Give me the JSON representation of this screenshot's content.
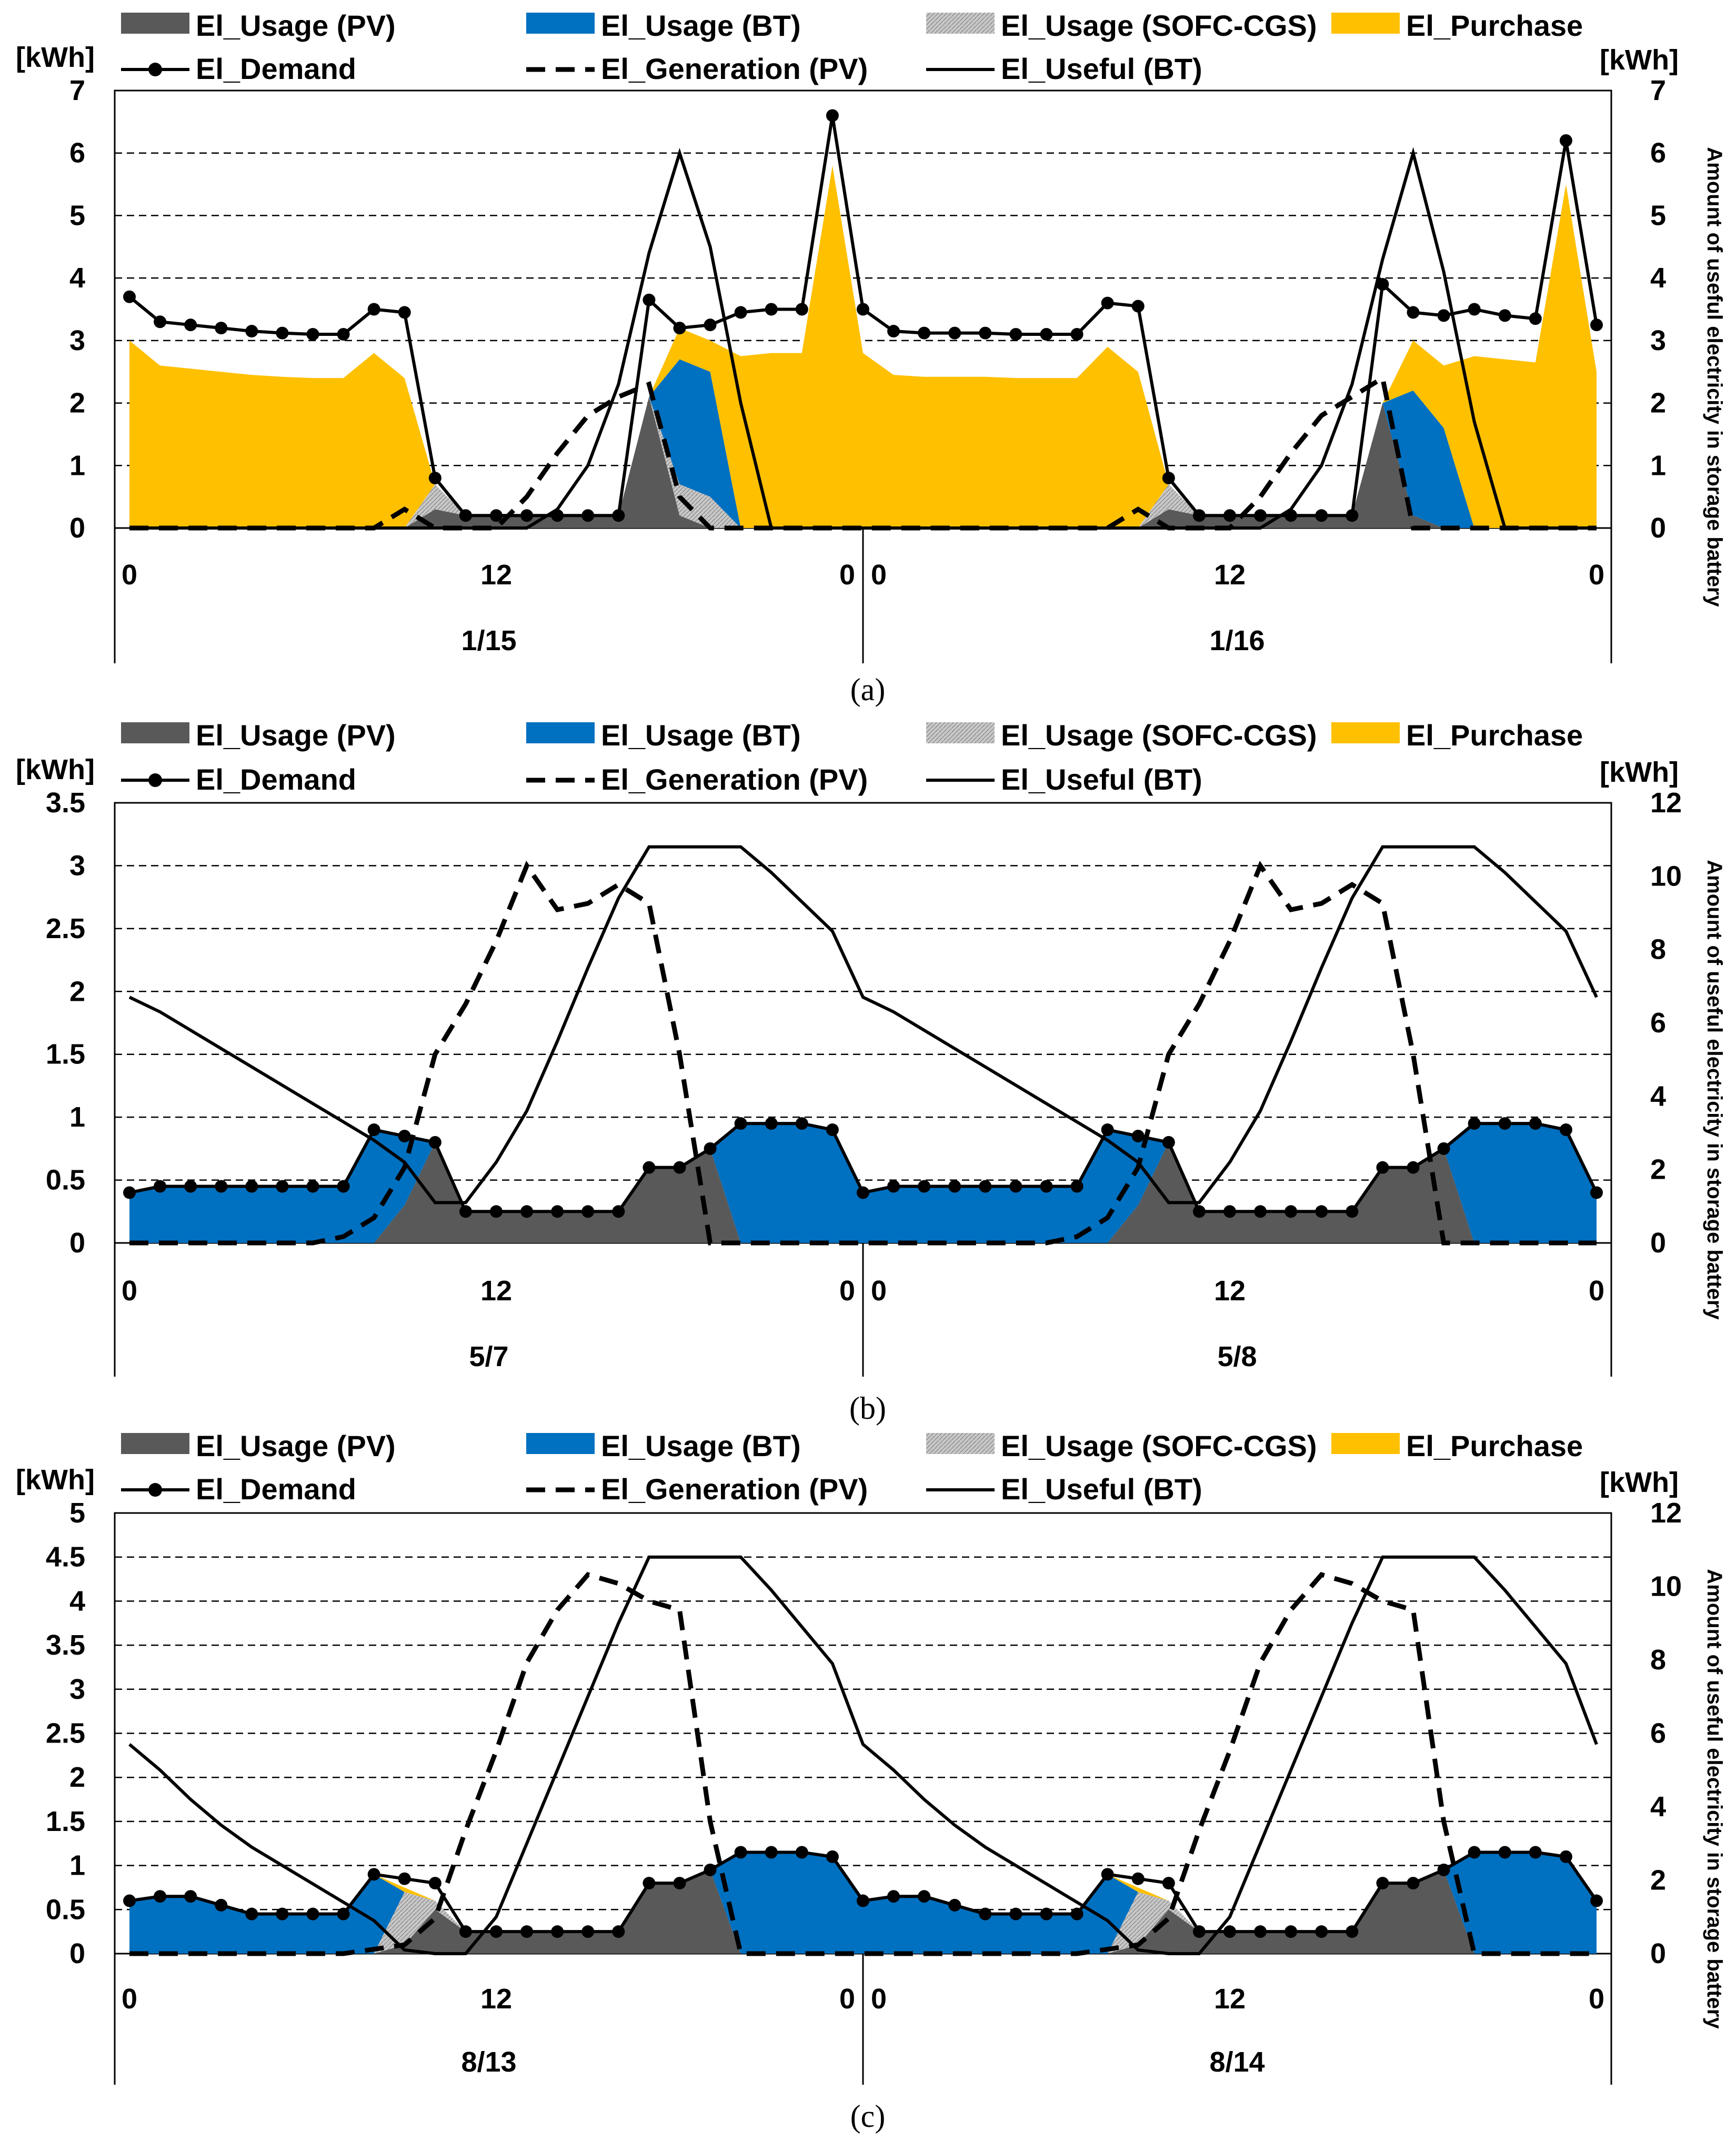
{
  "legend": {
    "usage_pv": "El_Usage (PV)",
    "usage_bt": "El_Usage (BT)",
    "usage_sofc": "El_Usage (SOFC-CGS)",
    "purchase": "El_Purchase",
    "demand": "El_Demand",
    "generation_pv": "El_Generation (PV)",
    "useful_bt": "El_Useful (BT)"
  },
  "colors": {
    "usage_pv": "#595959",
    "usage_bt": "#0070C0",
    "usage_sofc": "#BFBFBF",
    "purchase": "#FFC000",
    "line": "#000000",
    "grid": "#000000"
  },
  "chart_data": [
    {
      "type": "area",
      "caption": "(a)",
      "ylabel_left": "[kWh]",
      "ylabel_right": "[kWh]",
      "y2_title": "Amount of useful electricity in storage battery",
      "ylim": [
        0,
        7
      ],
      "y2lim": [
        0,
        7
      ],
      "yticks": [
        "0",
        "1",
        "2",
        "3",
        "4",
        "5",
        "6",
        "7"
      ],
      "y2ticks": [
        "0",
        "1",
        "2",
        "3",
        "4",
        "5",
        "6",
        "7"
      ],
      "xticks": [
        "0",
        "12",
        "0",
        "0",
        "12",
        "0"
      ],
      "days": [
        "1/15",
        "1/16"
      ],
      "hours": 48,
      "series": {
        "demand": [
          3.7,
          3.3,
          3.25,
          3.2,
          3.15,
          3.12,
          3.1,
          3.1,
          3.5,
          3.45,
          0.8,
          0.2,
          0.2,
          0.2,
          0.2,
          0.2,
          0.2,
          3.65,
          3.2,
          3.25,
          3.45,
          3.5,
          3.5,
          6.6,
          3.5,
          3.15,
          3.12,
          3.12,
          3.12,
          3.1,
          3.1,
          3.1,
          3.6,
          3.55,
          0.8,
          0.2,
          0.2,
          0.2,
          0.2,
          0.2,
          0.2,
          3.9,
          3.45,
          3.4,
          3.5,
          3.4,
          3.35,
          6.2,
          3.25
        ],
        "purchase": [
          3.0,
          2.6,
          2.55,
          2.5,
          2.45,
          2.42,
          2.4,
          2.4,
          2.8,
          2.4,
          0,
          0,
          0,
          0,
          0,
          0,
          0,
          0,
          0.5,
          0.5,
          2.75,
          2.8,
          2.8,
          5.8,
          2.8,
          2.45,
          2.42,
          2.42,
          2.42,
          2.4,
          2.4,
          2.4,
          2.9,
          2.5,
          0,
          0,
          0,
          0,
          0,
          0,
          0,
          0,
          0.8,
          1.0,
          2.75,
          2.7,
          2.65,
          5.5,
          2.5
        ],
        "usage_pv": [
          0,
          0,
          0,
          0,
          0,
          0,
          0,
          0,
          0,
          0,
          0.3,
          0.2,
          0.2,
          0.2,
          0.2,
          0.2,
          0.2,
          2.1,
          0.2,
          0,
          0,
          0,
          0,
          0,
          0,
          0,
          0,
          0,
          0,
          0,
          0,
          0,
          0,
          0,
          0.3,
          0.2,
          0.2,
          0.2,
          0.2,
          0.2,
          0.2,
          2.0,
          0.2,
          0,
          0,
          0,
          0,
          0,
          0
        ],
        "usage_bt": [
          0,
          0,
          0,
          0,
          0,
          0,
          0,
          0,
          0,
          0,
          0,
          0,
          0,
          0,
          0,
          0,
          0,
          0,
          2.0,
          2.0,
          0,
          0,
          0,
          0,
          0,
          0,
          0,
          0,
          0,
          0,
          0,
          0,
          0,
          0,
          0,
          0,
          0,
          0,
          0,
          0,
          0,
          0,
          2.0,
          1.6,
          0,
          0,
          0,
          0,
          0
        ],
        "usage_sofc": [
          0,
          0,
          0,
          0,
          0,
          0,
          0,
          0,
          0,
          0,
          0.4,
          0,
          0,
          0,
          0,
          0,
          0,
          0,
          0.5,
          0.5,
          0,
          0,
          0,
          0,
          0,
          0,
          0,
          0,
          0,
          0,
          0,
          0,
          0,
          0,
          0.4,
          0,
          0,
          0,
          0,
          0,
          0,
          0,
          0,
          0,
          0,
          0,
          0,
          0,
          0
        ],
        "generation_pv": [
          0,
          0,
          0,
          0,
          0,
          0,
          0,
          0,
          0,
          0.3,
          0,
          0,
          0,
          0.5,
          1.2,
          1.8,
          2.1,
          2.3,
          0.5,
          0,
          0,
          0,
          0,
          0,
          0,
          0,
          0,
          0,
          0,
          0,
          0,
          0,
          0,
          0.3,
          0,
          0,
          0,
          0.5,
          1.2,
          1.8,
          2.1,
          2.4,
          0,
          0,
          0,
          0,
          0,
          0,
          0
        ],
        "useful_bt": [
          0,
          0,
          0,
          0,
          0,
          0,
          0,
          0,
          0,
          0,
          0,
          0,
          0,
          0,
          0.3,
          1,
          2.3,
          4.4,
          6,
          4.5,
          2,
          0,
          0,
          0,
          0,
          0,
          0,
          0,
          0,
          0,
          0,
          0,
          0,
          0,
          0,
          0,
          0,
          0,
          0.3,
          1,
          2.3,
          4.3,
          6,
          4.1,
          1.7,
          0,
          0,
          0,
          0
        ]
      }
    },
    {
      "type": "area",
      "caption": "(b)",
      "ylabel_left": "[kWh]",
      "ylabel_right": "[kWh]",
      "y2_title": "Amount of useful electricity in storage battery",
      "ylim": [
        0,
        3.5
      ],
      "y2lim": [
        0,
        12
      ],
      "yticks": [
        "0",
        "0.5",
        "1",
        "1.5",
        "2",
        "2.5",
        "3",
        "3.5"
      ],
      "y2ticks": [
        "0",
        "2",
        "4",
        "6",
        "8",
        "10",
        "12"
      ],
      "xticks": [
        "0",
        "12",
        "0",
        "0",
        "12",
        "0"
      ],
      "days": [
        "5/7",
        "5/8"
      ],
      "hours": 48,
      "series": {
        "demand": [
          0.4,
          0.45,
          0.45,
          0.45,
          0.45,
          0.45,
          0.45,
          0.45,
          0.9,
          0.85,
          0.8,
          0.25,
          0.25,
          0.25,
          0.25,
          0.25,
          0.25,
          0.6,
          0.6,
          0.75,
          0.95,
          0.95,
          0.95,
          0.9,
          0.4,
          0.45,
          0.45,
          0.45,
          0.45,
          0.45,
          0.45,
          0.45,
          0.9,
          0.85,
          0.8,
          0.25,
          0.25,
          0.25,
          0.25,
          0.25,
          0.25,
          0.6,
          0.6,
          0.75,
          0.95,
          0.95,
          0.95,
          0.9,
          0.4
        ],
        "purchase": [
          0,
          0,
          0,
          0,
          0,
          0,
          0,
          0,
          0,
          0,
          0,
          0,
          0,
          0,
          0,
          0,
          0,
          0,
          0,
          0,
          0,
          0,
          0,
          0,
          0,
          0,
          0,
          0,
          0,
          0,
          0,
          0,
          0,
          0,
          0,
          0,
          0,
          0,
          0,
          0,
          0,
          0,
          0,
          0,
          0,
          0,
          0,
          0,
          0
        ],
        "usage_pv": [
          0,
          0,
          0,
          0,
          0,
          0,
          0,
          0,
          0,
          0.3,
          0.8,
          0.25,
          0.25,
          0.25,
          0.25,
          0.25,
          0.25,
          0.6,
          0.6,
          0.75,
          0,
          0,
          0,
          0,
          0,
          0,
          0,
          0,
          0,
          0,
          0,
          0,
          0,
          0.3,
          0.8,
          0.25,
          0.25,
          0.25,
          0.25,
          0.25,
          0.25,
          0.6,
          0.6,
          0.75,
          0,
          0,
          0,
          0,
          0
        ],
        "usage_bt": [
          0.4,
          0.45,
          0.45,
          0.45,
          0.45,
          0.45,
          0.45,
          0.45,
          0.9,
          0.55,
          0,
          0,
          0,
          0,
          0,
          0,
          0,
          0,
          0,
          0,
          0.95,
          0.95,
          0.95,
          0.9,
          0.4,
          0.45,
          0.45,
          0.45,
          0.45,
          0.45,
          0.45,
          0.45,
          0.9,
          0.55,
          0,
          0,
          0,
          0,
          0,
          0,
          0,
          0,
          0,
          0,
          0.95,
          0.95,
          0.95,
          0.9,
          0.4
        ],
        "usage_sofc": [
          0,
          0,
          0,
          0,
          0,
          0,
          0,
          0,
          0,
          0,
          0,
          0,
          0,
          0,
          0,
          0,
          0,
          0,
          0,
          0,
          0,
          0,
          0,
          0,
          0,
          0,
          0,
          0,
          0,
          0,
          0,
          0,
          0,
          0,
          0,
          0,
          0,
          0,
          0,
          0,
          0,
          0,
          0,
          0,
          0,
          0,
          0,
          0,
          0
        ],
        "generation_pv": [
          0,
          0,
          0,
          0,
          0,
          0,
          0,
          0.05,
          0.2,
          0.6,
          1.5,
          1.9,
          2.4,
          3.0,
          2.65,
          2.7,
          2.85,
          2.7,
          1.5,
          0,
          0,
          0,
          0,
          0,
          0,
          0,
          0,
          0,
          0,
          0,
          0,
          0.05,
          0.2,
          0.6,
          1.5,
          1.9,
          2.4,
          3.0,
          2.65,
          2.7,
          2.85,
          2.7,
          1.5,
          0,
          0,
          0,
          0,
          0,
          0
        ],
        "useful_bt": [
          6.7,
          6.3,
          5.8,
          5.3,
          4.8,
          4.3,
          3.8,
          3.3,
          2.8,
          2.2,
          1.1,
          1.1,
          2.2,
          3.6,
          5.5,
          7.5,
          9.4,
          10.8,
          10.8,
          10.8,
          10.8,
          10.1,
          9.3,
          8.5,
          6.7,
          6.3,
          5.8,
          5.3,
          4.8,
          4.3,
          3.8,
          3.3,
          2.8,
          2.2,
          1.1,
          1.1,
          2.2,
          3.6,
          5.5,
          7.5,
          9.4,
          10.8,
          10.8,
          10.8,
          10.8,
          10.1,
          9.3,
          8.5,
          6.7
        ]
      }
    },
    {
      "type": "area",
      "caption": "(c)",
      "ylabel_left": "[kWh]",
      "ylabel_right": "[kWh]",
      "y2_title": "Amount of useful electricity in storage battery",
      "ylim": [
        0,
        5
      ],
      "y2lim": [
        0,
        12
      ],
      "yticks": [
        "0",
        "0.5",
        "1",
        "1.5",
        "2",
        "2.5",
        "3",
        "3.5",
        "4",
        "4.5",
        "5"
      ],
      "y2ticks": [
        "0",
        "2",
        "4",
        "6",
        "8",
        "10",
        "12"
      ],
      "xticks": [
        "0",
        "12",
        "0",
        "0",
        "12",
        "0"
      ],
      "days": [
        "8/13",
        "8/14"
      ],
      "hours": 48,
      "series": {
        "demand": [
          0.6,
          0.65,
          0.65,
          0.55,
          0.45,
          0.45,
          0.45,
          0.45,
          0.9,
          0.85,
          0.8,
          0.25,
          0.25,
          0.25,
          0.25,
          0.25,
          0.25,
          0.8,
          0.8,
          0.95,
          1.15,
          1.15,
          1.15,
          1.1,
          0.6,
          0.65,
          0.65,
          0.55,
          0.45,
          0.45,
          0.45,
          0.45,
          0.9,
          0.85,
          0.8,
          0.25,
          0.25,
          0.25,
          0.25,
          0.25,
          0.25,
          0.8,
          0.8,
          0.95,
          1.15,
          1.15,
          1.15,
          1.1,
          0.6
        ],
        "purchase": [
          0,
          0,
          0,
          0,
          0,
          0,
          0,
          0,
          0,
          0.05,
          0,
          0,
          0,
          0,
          0,
          0,
          0,
          0,
          0,
          0,
          0,
          0,
          0,
          0,
          0,
          0,
          0,
          0,
          0,
          0,
          0,
          0,
          0,
          0.05,
          0,
          0,
          0,
          0,
          0,
          0,
          0,
          0,
          0,
          0,
          0,
          0,
          0,
          0,
          0
        ],
        "usage_pv": [
          0,
          0,
          0,
          0,
          0,
          0,
          0,
          0,
          0,
          0.1,
          0.5,
          0.25,
          0.25,
          0.25,
          0.25,
          0.25,
          0.25,
          0.8,
          0.8,
          0.95,
          0,
          0,
          0,
          0,
          0,
          0,
          0,
          0,
          0,
          0,
          0,
          0,
          0,
          0.1,
          0.5,
          0.25,
          0.25,
          0.25,
          0.25,
          0.25,
          0.25,
          0.8,
          0.8,
          0.95,
          0,
          0,
          0,
          0,
          0
        ],
        "usage_bt": [
          0.6,
          0.65,
          0.65,
          0.55,
          0.45,
          0.45,
          0.45,
          0.45,
          0.9,
          0,
          0,
          0,
          0,
          0,
          0,
          0,
          0,
          0,
          0,
          0,
          1.15,
          1.15,
          1.15,
          1.1,
          0.6,
          0.65,
          0.65,
          0.55,
          0.45,
          0.45,
          0.45,
          0.45,
          0.9,
          0,
          0,
          0,
          0,
          0,
          0,
          0,
          0,
          0,
          0,
          0,
          1.15,
          1.15,
          1.15,
          1.1,
          0.6
        ],
        "usage_sofc": [
          0,
          0,
          0,
          0,
          0,
          0,
          0,
          0,
          0,
          0.6,
          0.1,
          0,
          0,
          0,
          0,
          0,
          0,
          0,
          0,
          0,
          0,
          0,
          0,
          0,
          0,
          0,
          0,
          0,
          0,
          0,
          0,
          0,
          0,
          0.6,
          0.1,
          0,
          0,
          0,
          0,
          0,
          0,
          0,
          0,
          0,
          0,
          0,
          0,
          0,
          0
        ],
        "generation_pv": [
          0,
          0,
          0,
          0,
          0,
          0,
          0,
          0,
          0.05,
          0.1,
          0.4,
          1.4,
          2.3,
          3.3,
          3.9,
          4.3,
          4.2,
          4.0,
          3.9,
          1.5,
          0,
          0,
          0,
          0,
          0,
          0,
          0,
          0,
          0,
          0,
          0,
          0,
          0.05,
          0.1,
          0.4,
          1.4,
          2.3,
          3.3,
          3.9,
          4.3,
          4.2,
          4.0,
          3.9,
          1.5,
          0,
          0,
          0,
          0,
          0
        ],
        "useful_bt": [
          5.7,
          5.0,
          4.2,
          3.5,
          2.9,
          2.4,
          1.9,
          1.4,
          0.9,
          0.1,
          0,
          0,
          1.0,
          3.0,
          5.0,
          7.0,
          9.0,
          10.8,
          10.8,
          10.8,
          10.8,
          9.9,
          8.9,
          7.9,
          5.7,
          5.0,
          4.2,
          3.5,
          2.9,
          2.4,
          1.9,
          1.4,
          0.9,
          0.1,
          0,
          0,
          1.0,
          3.0,
          5.0,
          7.0,
          9.0,
          10.8,
          10.8,
          10.8,
          10.8,
          9.9,
          8.9,
          7.9,
          5.7
        ]
      }
    }
  ]
}
